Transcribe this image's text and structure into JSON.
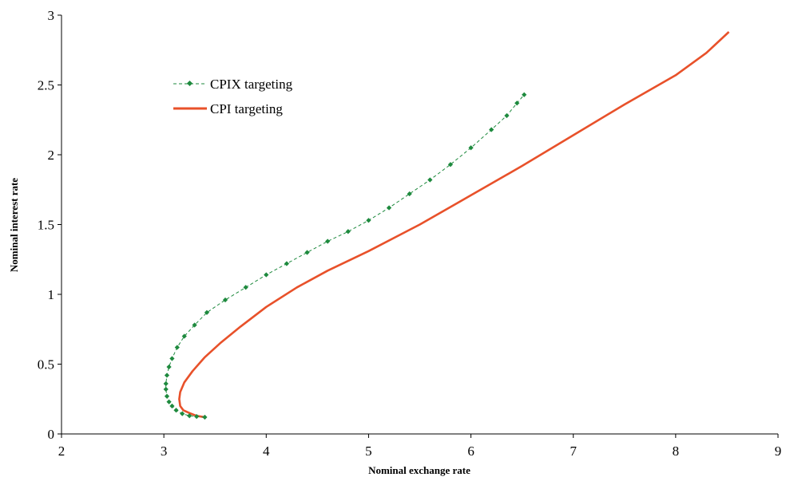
{
  "chart_data": {
    "type": "line",
    "xlabel": "Nominal exchange rate",
    "ylabel": "Nominal interest rate",
    "xlim": [
      2,
      9
    ],
    "ylim": [
      0,
      3
    ],
    "x_ticks": [
      "2",
      "3",
      "4",
      "5",
      "6",
      "7",
      "8",
      "9"
    ],
    "y_ticks": [
      "0",
      "0.5",
      "1",
      "1.5",
      "2",
      "2.5",
      "3"
    ],
    "grid": false,
    "legend_position": "top-left",
    "series": [
      {
        "name": "CPIX targeting",
        "color": "#1e8a3e",
        "style": "dashed-diamond-markers",
        "points": [
          [
            3.4,
            0.12
          ],
          [
            3.32,
            0.125
          ],
          [
            3.25,
            0.13
          ],
          [
            3.18,
            0.145
          ],
          [
            3.12,
            0.17
          ],
          [
            3.08,
            0.2
          ],
          [
            3.05,
            0.23
          ],
          [
            3.03,
            0.27
          ],
          [
            3.02,
            0.32
          ],
          [
            3.02,
            0.36
          ],
          [
            3.03,
            0.42
          ],
          [
            3.05,
            0.48
          ],
          [
            3.08,
            0.54
          ],
          [
            3.13,
            0.62
          ],
          [
            3.2,
            0.7
          ],
          [
            3.3,
            0.78
          ],
          [
            3.42,
            0.87
          ],
          [
            3.6,
            0.96
          ],
          [
            3.8,
            1.05
          ],
          [
            4.0,
            1.14
          ],
          [
            4.2,
            1.22
          ],
          [
            4.4,
            1.3
          ],
          [
            4.6,
            1.38
          ],
          [
            4.8,
            1.45
          ],
          [
            5.0,
            1.53
          ],
          [
            5.2,
            1.62
          ],
          [
            5.4,
            1.72
          ],
          [
            5.6,
            1.82
          ],
          [
            5.8,
            1.93
          ],
          [
            6.0,
            2.05
          ],
          [
            6.2,
            2.18
          ],
          [
            6.35,
            2.28
          ],
          [
            6.45,
            2.37
          ],
          [
            6.52,
            2.43
          ]
        ]
      },
      {
        "name": "CPI targeting",
        "color": "#e8512a",
        "style": "solid",
        "points": [
          [
            3.4,
            0.12
          ],
          [
            3.32,
            0.13
          ],
          [
            3.25,
            0.15
          ],
          [
            3.19,
            0.17
          ],
          [
            3.16,
            0.2
          ],
          [
            3.15,
            0.25
          ],
          [
            3.16,
            0.3
          ],
          [
            3.2,
            0.37
          ],
          [
            3.28,
            0.45
          ],
          [
            3.4,
            0.55
          ],
          [
            3.55,
            0.65
          ],
          [
            3.75,
            0.77
          ],
          [
            4.0,
            0.91
          ],
          [
            4.3,
            1.05
          ],
          [
            4.6,
            1.17
          ],
          [
            5.0,
            1.31
          ],
          [
            5.5,
            1.5
          ],
          [
            6.0,
            1.71
          ],
          [
            6.5,
            1.92
          ],
          [
            7.0,
            2.14
          ],
          [
            7.5,
            2.36
          ],
          [
            8.0,
            2.57
          ],
          [
            8.3,
            2.73
          ],
          [
            8.52,
            2.88
          ]
        ]
      }
    ]
  }
}
